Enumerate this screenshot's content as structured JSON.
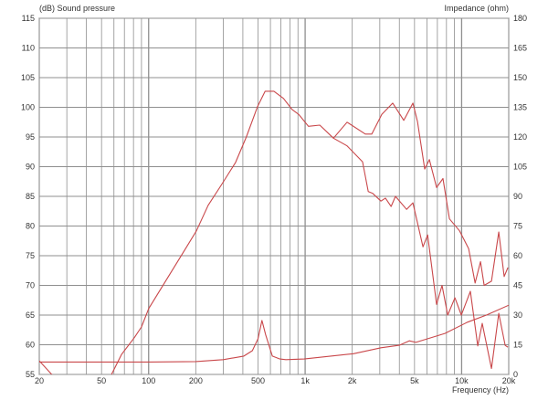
{
  "chart_data": {
    "type": "line",
    "ylabel_left": "(dB)  Sound pressure",
    "ylabel_right": "Impedance  (ohm)",
    "xlabel": "Frequency  (Hz)",
    "x_scale": "log",
    "xlim": [
      20,
      20000
    ],
    "ylim_left": [
      55,
      115
    ],
    "ylim_right": [
      0,
      180
    ],
    "grid": true,
    "x_tick_labels": [
      {
        "value": 20,
        "label": "20"
      },
      {
        "value": 50,
        "label": "50"
      },
      {
        "value": 100,
        "label": "100"
      },
      {
        "value": 200,
        "label": "200"
      },
      {
        "value": 500,
        "label": "500"
      },
      {
        "value": 1000,
        "label": "1k"
      },
      {
        "value": 2000,
        "label": "2k"
      },
      {
        "value": 5000,
        "label": "5k"
      },
      {
        "value": 10000,
        "label": "10k"
      },
      {
        "value": 20000,
        "label": "20k"
      }
    ],
    "y_left_ticks": [
      55,
      60,
      65,
      70,
      75,
      80,
      85,
      90,
      95,
      100,
      105,
      110,
      115
    ],
    "y_right_ticks": [
      0,
      15,
      30,
      45,
      60,
      75,
      90,
      105,
      120,
      135,
      150,
      165,
      180
    ],
    "line_color": "#c9474a",
    "grid_color": "#8f8f8f",
    "series": [
      {
        "axis": "left",
        "x": [
          20,
          24,
          30,
          40,
          50,
          57.9,
          67.2,
          81,
          90,
          100,
          126,
          164,
          202,
          240,
          293,
          359,
          421,
          496,
          555,
          632,
          727,
          828,
          910,
          1050,
          1240,
          1517,
          1853,
          2426,
          2667,
          3090,
          3630,
          4270,
          4885,
          5220,
          5810,
          6220,
          6920,
          7600,
          8360,
          9690,
          11090,
          12190,
          13200,
          13940,
          15520,
          17270,
          18710,
          19770
        ],
        "y": [
          57.3,
          55,
          53.5,
          53,
          53.5,
          55,
          58.4,
          61.2,
          63,
          66.1,
          70.4,
          75.3,
          79.2,
          83.5,
          87,
          90.7,
          95,
          100.1,
          102.7,
          102.7,
          101.5,
          99.6,
          98.8,
          96.8,
          97,
          94.8,
          97.5,
          95.5,
          95.5,
          98.8,
          100.7,
          97.8,
          100.7,
          97.6,
          89.6,
          91.2,
          86.5,
          88,
          81.2,
          79.2,
          76.2,
          70.4,
          74,
          70,
          70.7,
          79,
          71.5,
          73
        ]
      },
      {
        "axis": "left",
        "x": [
          1517,
          1853,
          2330,
          2530,
          2705,
          3050,
          3260,
          3540,
          3780,
          4450,
          4885,
          5660,
          6060,
          6920,
          7500,
          8150,
          9060,
          9950,
          11380,
          12680,
          13550,
          15520,
          17270,
          18980,
          19770
        ],
        "y": [
          94.8,
          93.5,
          90.8,
          85.8,
          85.5,
          84.2,
          84.7,
          83.3,
          85,
          82.8,
          83.9,
          76.5,
          78.5,
          66.8,
          70,
          65,
          67.9,
          65,
          69,
          59.8,
          63.6,
          56,
          65.3,
          59.9,
          59.6
        ]
      },
      {
        "axis": "right",
        "x": [
          20,
          100,
          200,
          300,
          406,
          460,
          500,
          530,
          560,
          617,
          690,
          753,
          986,
          2040,
          3050,
          3990,
          4630,
          5100,
          7820,
          10900,
          14400,
          20000
        ],
        "y": [
          6.3,
          6.3,
          6.5,
          7.5,
          9.3,
          12,
          18,
          27.3,
          20,
          9.3,
          7.8,
          7.5,
          7.8,
          10.5,
          13.5,
          14.7,
          17,
          16.2,
          20.7,
          26.4,
          30,
          35
        ]
      }
    ]
  }
}
